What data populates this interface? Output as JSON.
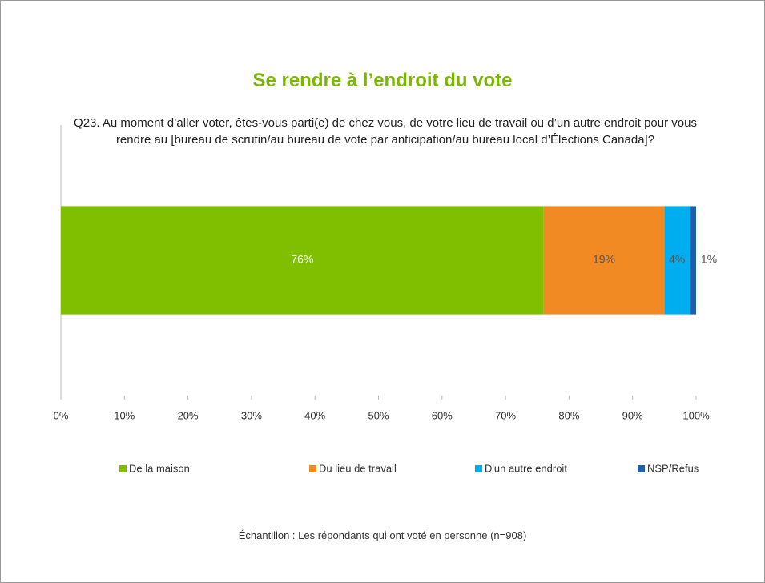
{
  "chart_data": {
    "type": "stacked_bar_horizontal",
    "title": "Se rendre à l’endroit du vote",
    "subtitle": "Q23. Au moment d’aller voter, êtes-vous parti(e) de chez vous, de votre lieu de travail ou d’un autre endroit pour vous rendre au [bureau de scrutin/au bureau de vote par anticipation/au bureau local d’Élections Canada]?",
    "categories": [
      null
    ],
    "series": [
      {
        "name": "De la maison",
        "color": "#7fbf00",
        "values": [
          76
        ],
        "value_labels": [
          "76%"
        ]
      },
      {
        "name": "Du lieu de travail",
        "color": "#f28a24",
        "values": [
          19
        ],
        "value_labels": [
          "19%"
        ]
      },
      {
        "name": "D'un autre endroit",
        "color": "#00aeef",
        "values": [
          4
        ],
        "value_labels": [
          "4%"
        ]
      },
      {
        "name": "NSP/Refus",
        "color": "#1f5fa8",
        "values": [
          1
        ],
        "value_labels": [
          "1%"
        ]
      }
    ],
    "xlim": [
      0,
      100
    ],
    "xticks": [
      {
        "value": 0,
        "label": "0%"
      },
      {
        "value": 10,
        "label": "10%"
      },
      {
        "value": 20,
        "label": "20%"
      },
      {
        "value": 30,
        "label": "30%"
      },
      {
        "value": 40,
        "label": "40%"
      },
      {
        "value": 50,
        "label": "50%"
      },
      {
        "value": 60,
        "label": "60%"
      },
      {
        "value": 70,
        "label": "70%"
      },
      {
        "value": 80,
        "label": "80%"
      },
      {
        "value": 90,
        "label": "90%"
      },
      {
        "value": 100,
        "label": "100%"
      }
    ],
    "legend": "bottom",
    "footnote": "Échantillon : Les répondants qui ont voté en personne (n=908)"
  }
}
